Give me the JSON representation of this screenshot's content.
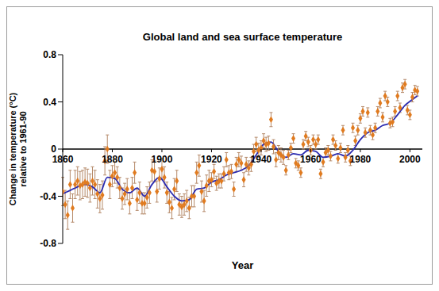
{
  "chart_data": {
    "type": "scatter",
    "title": "Global land and sea surface temperature",
    "x_label": "Year",
    "y_label": [
      "Change in temperature (°C)",
      "relative to 1961-90"
    ],
    "xlim": [
      1860,
      2005
    ],
    "xticks": [
      1860,
      1880,
      1900,
      1920,
      1940,
      1960,
      1980,
      2000
    ],
    "ylim": [
      -0.8,
      0.8
    ],
    "yticks": [
      -0.8,
      -0.4,
      0,
      0.4,
      0.8
    ],
    "grid": false,
    "series": [
      {
        "type": "scatter",
        "color": "#e07b20",
        "marker": "diamond",
        "x": [
          1860,
          1861,
          1862,
          1863,
          1864,
          1865,
          1866,
          1867,
          1868,
          1869,
          1870,
          1871,
          1872,
          1873,
          1874,
          1875,
          1876,
          1877,
          1878,
          1879,
          1880,
          1881,
          1882,
          1883,
          1884,
          1885,
          1886,
          1887,
          1888,
          1889,
          1890,
          1891,
          1892,
          1893,
          1894,
          1895,
          1896,
          1897,
          1898,
          1899,
          1900,
          1901,
          1902,
          1903,
          1904,
          1905,
          1906,
          1907,
          1908,
          1909,
          1910,
          1911,
          1912,
          1913,
          1914,
          1915,
          1916,
          1917,
          1918,
          1919,
          1920,
          1921,
          1922,
          1923,
          1924,
          1925,
          1926,
          1927,
          1928,
          1929,
          1930,
          1931,
          1932,
          1933,
          1934,
          1935,
          1936,
          1937,
          1938,
          1939,
          1940,
          1941,
          1942,
          1943,
          1944,
          1945,
          1946,
          1947,
          1948,
          1949,
          1950,
          1951,
          1952,
          1953,
          1954,
          1955,
          1956,
          1957,
          1958,
          1959,
          1960,
          1961,
          1962,
          1963,
          1964,
          1965,
          1966,
          1967,
          1968,
          1969,
          1970,
          1971,
          1972,
          1973,
          1974,
          1975,
          1976,
          1977,
          1978,
          1979,
          1980,
          1981,
          1982,
          1983,
          1984,
          1985,
          1986,
          1987,
          1988,
          1989,
          1990,
          1991,
          1992,
          1993,
          1994,
          1995,
          1996,
          1997,
          1998,
          1999,
          2000,
          2001,
          2002,
          2003
        ],
        "values": [
          -0.36,
          -0.47,
          -0.56,
          -0.3,
          -0.5,
          -0.3,
          -0.27,
          -0.31,
          -0.3,
          -0.28,
          -0.29,
          -0.33,
          -0.27,
          -0.3,
          -0.38,
          -0.42,
          -0.39,
          -0.1,
          0.0,
          -0.3,
          -0.23,
          -0.2,
          -0.24,
          -0.33,
          -0.42,
          -0.38,
          -0.34,
          -0.46,
          -0.33,
          -0.2,
          -0.43,
          -0.37,
          -0.46,
          -0.46,
          -0.41,
          -0.37,
          -0.18,
          -0.19,
          -0.36,
          -0.25,
          -0.17,
          -0.24,
          -0.37,
          -0.45,
          -0.5,
          -0.34,
          -0.27,
          -0.47,
          -0.49,
          -0.47,
          -0.44,
          -0.5,
          -0.4,
          -0.4,
          -0.2,
          -0.14,
          -0.36,
          -0.44,
          -0.31,
          -0.27,
          -0.26,
          -0.19,
          -0.29,
          -0.27,
          -0.27,
          -0.21,
          -0.09,
          -0.2,
          -0.19,
          -0.34,
          -0.13,
          -0.09,
          -0.12,
          -0.26,
          -0.13,
          -0.16,
          -0.13,
          -0.02,
          0.04,
          -0.01,
          0.01,
          0.07,
          0.04,
          0.05,
          0.25,
          0.02,
          -0.09,
          -0.03,
          -0.05,
          -0.07,
          -0.18,
          -0.05,
          0.01,
          0.09,
          -0.12,
          -0.14,
          -0.2,
          0.04,
          0.11,
          0.06,
          -0.01,
          0.08,
          0.04,
          0.08,
          -0.21,
          -0.11,
          -0.03,
          -0.01,
          -0.06,
          0.08,
          0.03,
          -0.08,
          0.01,
          0.16,
          -0.07,
          -0.01,
          -0.1,
          0.18,
          0.07,
          0.16,
          0.26,
          0.32,
          0.14,
          0.31,
          0.16,
          0.12,
          0.18,
          0.32,
          0.39,
          0.27,
          0.45,
          0.4,
          0.22,
          0.23,
          0.32,
          0.45,
          0.35,
          0.52,
          0.55,
          0.33,
          0.29,
          0.44,
          0.5,
          0.49
        ],
        "error": [
          0.12,
          0.12,
          0.12,
          0.12,
          0.12,
          0.12,
          0.12,
          0.12,
          0.12,
          0.12,
          0.12,
          0.12,
          0.12,
          0.12,
          0.12,
          0.12,
          0.12,
          0.12,
          0.12,
          0.12,
          0.09,
          0.09,
          0.09,
          0.09,
          0.09,
          0.09,
          0.09,
          0.09,
          0.09,
          0.09,
          0.09,
          0.09,
          0.09,
          0.09,
          0.09,
          0.09,
          0.09,
          0.09,
          0.09,
          0.09,
          0.09,
          0.09,
          0.09,
          0.09,
          0.09,
          0.09,
          0.09,
          0.09,
          0.09,
          0.09,
          0.09,
          0.09,
          0.09,
          0.09,
          0.09,
          0.09,
          0.09,
          0.09,
          0.09,
          0.09,
          0.06,
          0.06,
          0.06,
          0.06,
          0.06,
          0.06,
          0.06,
          0.06,
          0.06,
          0.06,
          0.06,
          0.06,
          0.06,
          0.06,
          0.06,
          0.06,
          0.06,
          0.06,
          0.06,
          0.06,
          0.06,
          0.06,
          0.06,
          0.06,
          0.06,
          0.06,
          0.06,
          0.06,
          0.06,
          0.06,
          0.04,
          0.04,
          0.04,
          0.04,
          0.04,
          0.04,
          0.04,
          0.04,
          0.04,
          0.04,
          0.04,
          0.04,
          0.04,
          0.04,
          0.04,
          0.04,
          0.04,
          0.04,
          0.04,
          0.04,
          0.04,
          0.04,
          0.04,
          0.04,
          0.04,
          0.04,
          0.04,
          0.04,
          0.04,
          0.04,
          0.04,
          0.04,
          0.04,
          0.04,
          0.04,
          0.04,
          0.04,
          0.04,
          0.04,
          0.04,
          0.04,
          0.04,
          0.04,
          0.04,
          0.04,
          0.04,
          0.04,
          0.04,
          0.04,
          0.04,
          0.04,
          0.04,
          0.04,
          0.04
        ]
      },
      {
        "type": "line",
        "color": "#2b2bb0",
        "line_style": "solid",
        "x": [
          1860,
          1863,
          1866,
          1869,
          1872,
          1875,
          1878,
          1881,
          1884,
          1887,
          1890,
          1893,
          1896,
          1899,
          1902,
          1905,
          1908,
          1911,
          1914,
          1917,
          1920,
          1923,
          1926,
          1929,
          1932,
          1935,
          1938,
          1941,
          1944,
          1947,
          1950,
          1953,
          1956,
          1959,
          1962,
          1965,
          1968,
          1971,
          1974,
          1977,
          1980,
          1983,
          1986,
          1989,
          1992,
          1995,
          1998,
          2001,
          2003
        ],
        "values": [
          -0.38,
          -0.35,
          -0.32,
          -0.3,
          -0.32,
          -0.37,
          -0.24,
          -0.25,
          -0.34,
          -0.37,
          -0.33,
          -0.4,
          -0.3,
          -0.24,
          -0.32,
          -0.4,
          -0.44,
          -0.43,
          -0.34,
          -0.33,
          -0.28,
          -0.26,
          -0.22,
          -0.2,
          -0.18,
          -0.14,
          -0.05,
          0.04,
          0.06,
          -0.02,
          -0.07,
          -0.04,
          -0.05,
          -0.01,
          -0.02,
          -0.07,
          -0.06,
          -0.04,
          -0.06,
          -0.01,
          0.08,
          0.14,
          0.16,
          0.2,
          0.22,
          0.29,
          0.37,
          0.42,
          0.45
        ]
      }
    ]
  }
}
